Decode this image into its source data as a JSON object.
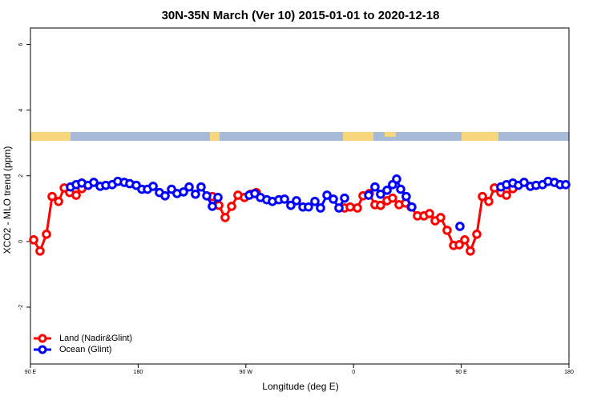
{
  "chart_data": {
    "type": "line",
    "title": "30N-35N March (Ver 10)   2015-01-01 to 2020-12-18",
    "x_label": "Longitude (deg E)",
    "y_label": "XCO2 - MLO trend (ppm)",
    "xlim": [
      90,
      540
    ],
    "ylim": [
      -3.73,
      6.5
    ],
    "xticks": [
      {
        "value": 90,
        "label": "90 E"
      },
      180,
      {
        "value": 270,
        "label": "90 W"
      },
      {
        "value": 360,
        "label": "0"
      },
      {
        "value": 450,
        "label": "90 E"
      },
      {
        "value": 540,
        "label": "180"
      }
    ],
    "yticks": [
      -2,
      0,
      2,
      4,
      6
    ],
    "legend": "bottom-left",
    "series": [
      {
        "name": "Land (Nadir&Glint)",
        "color": "#ff0000",
        "x": [
          92.7,
          98.0,
          103.4,
          108.1,
          113.5,
          118.2,
          122.8,
          128.2,
          132.9,
          null,
          242.0,
          247.4,
          252.7,
          258.1,
          263.4,
          268.8,
          274.1,
          278.8,
          null,
          352.5,
          357.2,
          363.2,
          367.9,
          373.2,
          377.9,
          382.6,
          388.0,
          392.6,
          398.0,
          403.4,
          408.1,
          413.4,
          418.8,
          423.5,
          428.2,
          432.8,
          438.2,
          443.6,
          448.3,
          452.9,
          457.6,
          463.0,
          467.7,
          473.0,
          477.7,
          483.1,
          487.8,
          493.1
        ],
        "values": [
          0.05,
          -0.29,
          0.22,
          1.37,
          1.22,
          1.63,
          1.49,
          1.41,
          1.61,
          null,
          1.37,
          1.1,
          0.73,
          1.07,
          1.41,
          1.34,
          1.44,
          1.49,
          null,
          1.02,
          1.05,
          1.02,
          1.39,
          1.46,
          1.12,
          1.1,
          1.24,
          1.32,
          1.12,
          1.17,
          1.05,
          0.78,
          0.78,
          0.85,
          0.63,
          0.73,
          0.34,
          -0.12,
          -0.1,
          0.05,
          -0.29,
          0.22,
          1.37,
          1.22,
          1.63,
          1.49,
          1.41,
          1.61
        ]
      },
      {
        "name": "Ocean (Glint)",
        "color": "#0000ff",
        "x": [
          123.5,
          128.2,
          132.9,
          138.2,
          142.9,
          148.3,
          153.0,
          158.3,
          163.0,
          168.4,
          173.0,
          178.4,
          183.1,
          187.8,
          192.5,
          197.8,
          202.5,
          207.9,
          212.5,
          217.9,
          222.6,
          227.9,
          232.6,
          237.3,
          242.0,
          246.7,
          null,
          272.8,
          277.5,
          282.2,
          287.5,
          292.2,
          297.6,
          302.3,
          307.6,
          312.3,
          317.7,
          322.3,
          327.7,
          332.4,
          337.8,
          343.1,
          347.8,
          352.5,
          null,
          372.6,
          377.9,
          382.6,
          388.0,
          392.6,
          396.0,
          399.4,
          404.0,
          408.7,
          null,
          448.9,
          null,
          483.1,
          487.8,
          493.1,
          497.8,
          502.5,
          507.8,
          512.5,
          517.9,
          522.6,
          527.9,
          532.6,
          537.3
        ],
        "values": [
          1.66,
          1.73,
          1.78,
          1.71,
          1.8,
          1.68,
          1.71,
          1.73,
          1.83,
          1.8,
          1.76,
          1.71,
          1.59,
          1.59,
          1.68,
          1.49,
          1.39,
          1.59,
          1.46,
          1.51,
          1.66,
          1.44,
          1.66,
          1.39,
          1.07,
          1.34,
          null,
          1.41,
          1.46,
          1.34,
          1.27,
          1.22,
          1.27,
          1.29,
          1.1,
          1.24,
          1.05,
          1.05,
          1.22,
          1.02,
          1.41,
          1.29,
          1.02,
          1.32,
          null,
          1.41,
          1.66,
          1.44,
          1.56,
          1.73,
          1.9,
          1.59,
          1.37,
          1.05,
          null,
          0.46,
          null,
          1.66,
          1.73,
          1.78,
          1.71,
          1.8,
          1.68,
          1.71,
          1.73,
          1.83,
          1.8,
          1.73,
          1.73
        ]
      }
    ]
  }
}
